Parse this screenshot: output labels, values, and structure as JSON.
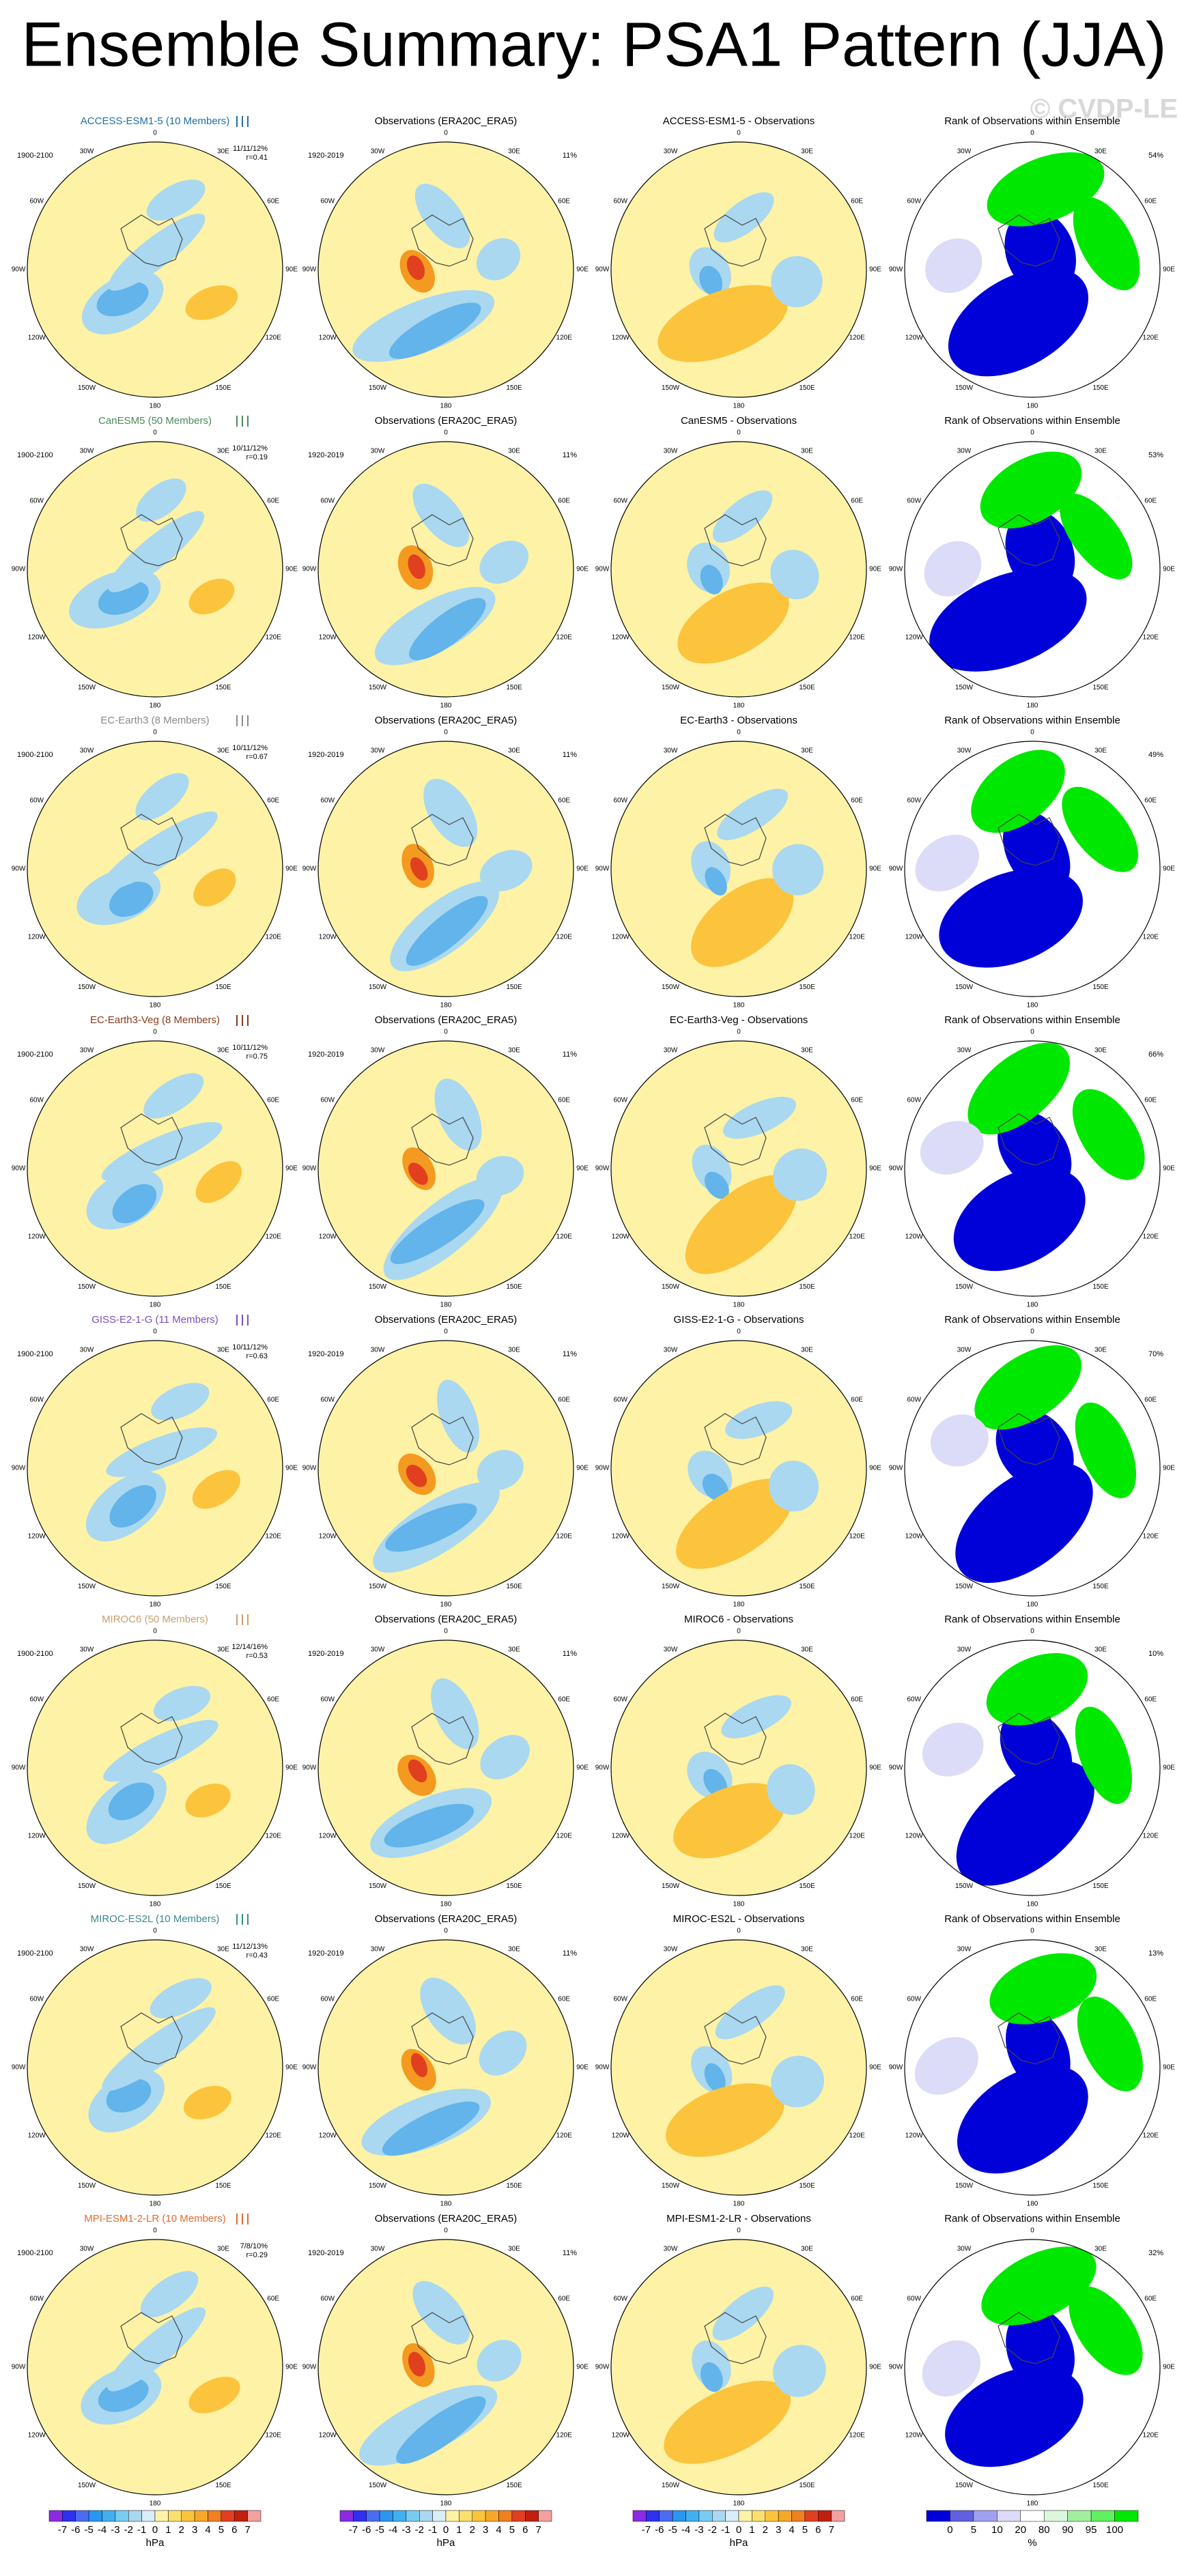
{
  "header": {
    "title": "Ensemble Summary: PSA1 Pattern (JJA)",
    "watermark": "© CVDP-LE"
  },
  "map_labels": [
    "0",
    "30E",
    "60E",
    "90E",
    "120E",
    "150E",
    "180",
    "150W",
    "120W",
    "90W",
    "60W",
    "30W"
  ],
  "model_period": "1900-2100",
  "observations": {
    "title": "Observations (ERA20C_ERA5)",
    "period": "1920-2019",
    "percent": "11%"
  },
  "rank_title": "Rank of Observations within Ensemble",
  "rows": [
    {
      "model": "ACCESS-ESM1-5 (10 Members)",
      "color": "#1f6fa0",
      "spread": "11/11/12%",
      "r": "r=0.41",
      "diff": "ACCESS-ESM1-5 - Observations",
      "rank": "54%"
    },
    {
      "model": "CanESM5 (50 Members)",
      "color": "#4a8a5a",
      "spread": "10/11/12%",
      "r": "r=0.19",
      "diff": "CanESM5 - Observations",
      "rank": "53%"
    },
    {
      "model": "EC-Earth3 (8 Members)",
      "color": "#8a8a8a",
      "spread": "10/11/12%",
      "r": "r=0.67",
      "diff": "EC-Earth3 - Observations",
      "rank": "49%"
    },
    {
      "model": "EC-Earth3-Veg (8 Members)",
      "color": "#8b3a1a",
      "spread": "10/11/12%",
      "r": "r=0.75",
      "diff": "EC-Earth3-Veg - Observations",
      "rank": "66%"
    },
    {
      "model": "GISS-E2-1-G (11 Members)",
      "color": "#7a4fc0",
      "spread": "10/11/12%",
      "r": "r=0.63",
      "diff": "GISS-E2-1-G - Observations",
      "rank": "70%"
    },
    {
      "model": "MIROC6 (50 Members)",
      "color": "#c9a070",
      "spread": "12/14/16%",
      "r": "r=0.53",
      "diff": "MIROC6 - Observations",
      "rank": "10%"
    },
    {
      "model": "MIROC-ES2L (10 Members)",
      "color": "#3a8a8a",
      "spread": "11/12/13%",
      "r": "r=0.43",
      "diff": "MIROC-ES2L - Observations",
      "rank": "13%"
    },
    {
      "model": "MPI-ESM1-2-LR (10 Members)",
      "color": "#e06a30",
      "spread": "7/8/10%",
      "r": "r=0.29",
      "diff": "MPI-ESM1-2-LR - Observations",
      "rank": "32%"
    }
  ],
  "colorbars": {
    "hpa": {
      "ticks": [
        -7,
        -6,
        -5,
        -4,
        -3,
        -2,
        -1,
        0,
        1,
        2,
        3,
        4,
        5,
        6,
        7
      ],
      "unit": "hPa"
    },
    "rank": {
      "ticks": [
        0,
        5,
        10,
        20,
        80,
        90,
        95,
        100
      ],
      "unit": "%"
    }
  }
}
